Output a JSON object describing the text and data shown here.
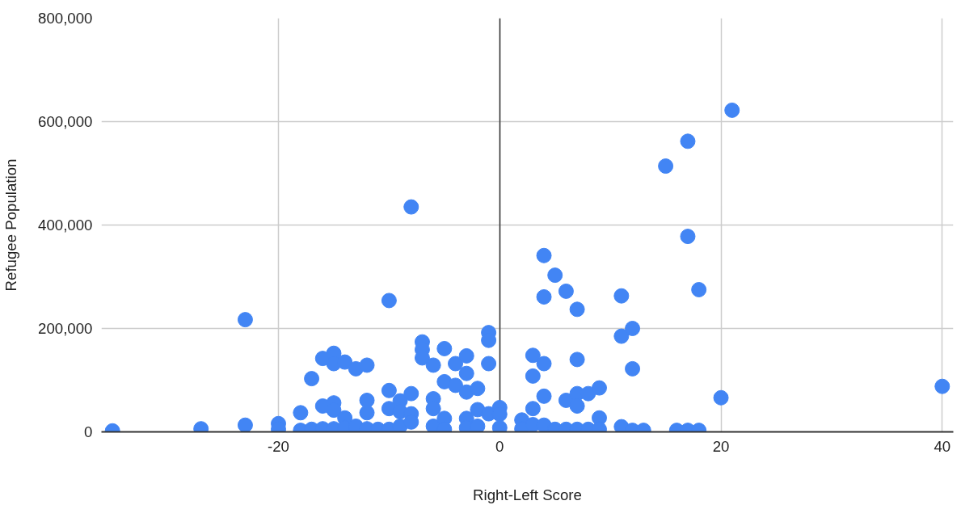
{
  "chart_data": {
    "type": "scatter",
    "xlabel": "Right-Left Score",
    "ylabel": "Refugee Population",
    "xlim": [
      -36,
      41
    ],
    "ylim": [
      0,
      800000
    ],
    "xticks": [
      -20,
      0,
      20,
      40
    ],
    "yticks": [
      0,
      {
        "value": 200000,
        "label": "200,000"
      },
      {
        "value": 400000,
        "label": "400,000"
      },
      {
        "value": 600000,
        "label": "600,000"
      },
      {
        "value": 800000,
        "label": "800,000"
      }
    ],
    "grid": true,
    "marker": "circle",
    "series": [
      {
        "color": "#4285f4",
        "x": [
          -35,
          -27,
          -23,
          -23,
          -20,
          -20,
          -18,
          -18,
          -17,
          -17,
          -16,
          -16,
          -16,
          -15,
          -15,
          -15,
          -15,
          -15,
          -14,
          -14,
          -14,
          -13,
          -13,
          -12,
          -12,
          -12,
          -12,
          -11,
          -10,
          -10,
          -10,
          -10,
          -9,
          -9,
          -9,
          -8,
          -8,
          -8,
          -8,
          -7,
          -7,
          -7,
          -6,
          -6,
          -6,
          -6,
          -5,
          -5,
          -5,
          -5,
          -4,
          -4,
          -3,
          -3,
          -3,
          -3,
          -3,
          -2,
          -2,
          -2,
          -1,
          -1,
          -1,
          -1,
          0,
          0,
          0,
          2,
          2,
          3,
          3,
          3,
          3,
          4,
          4,
          4,
          4,
          4,
          5,
          5,
          6,
          6,
          6,
          7,
          7,
          7,
          7,
          7,
          8,
          8,
          9,
          9,
          9,
          11,
          11,
          11,
          12,
          12,
          12,
          13,
          15,
          16,
          17,
          17,
          17,
          18,
          18,
          20,
          21,
          40
        ],
        "values": [
          2000,
          6000,
          217000,
          13000,
          16000,
          5000,
          37000,
          3000,
          103000,
          5000,
          142000,
          50000,
          6000,
          152000,
          132000,
          56000,
          42000,
          6000,
          135000,
          27000,
          8000,
          122000,
          11000,
          129000,
          61000,
          37000,
          6000,
          5000,
          254000,
          80000,
          45000,
          5000,
          60000,
          39000,
          11000,
          435000,
          74000,
          35000,
          19000,
          174000,
          159000,
          143000,
          129000,
          64000,
          45000,
          11000,
          161000,
          97000,
          26000,
          5000,
          132000,
          90000,
          147000,
          113000,
          77000,
          26000,
          8000,
          84000,
          43000,
          11000,
          192000,
          177000,
          132000,
          35000,
          47000,
          34000,
          8000,
          23000,
          6000,
          148000,
          108000,
          45000,
          14000,
          341000,
          261000,
          132000,
          69000,
          13000,
          303000,
          5000,
          272000,
          61000,
          5000,
          237000,
          140000,
          74000,
          50000,
          5000,
          74000,
          5000,
          85000,
          27000,
          5000,
          263000,
          185000,
          10000,
          200000,
          122000,
          3000,
          3000,
          514000,
          3000,
          562000,
          378000,
          3000,
          275000,
          3000,
          66000,
          622000,
          88000
        ]
      }
    ]
  }
}
